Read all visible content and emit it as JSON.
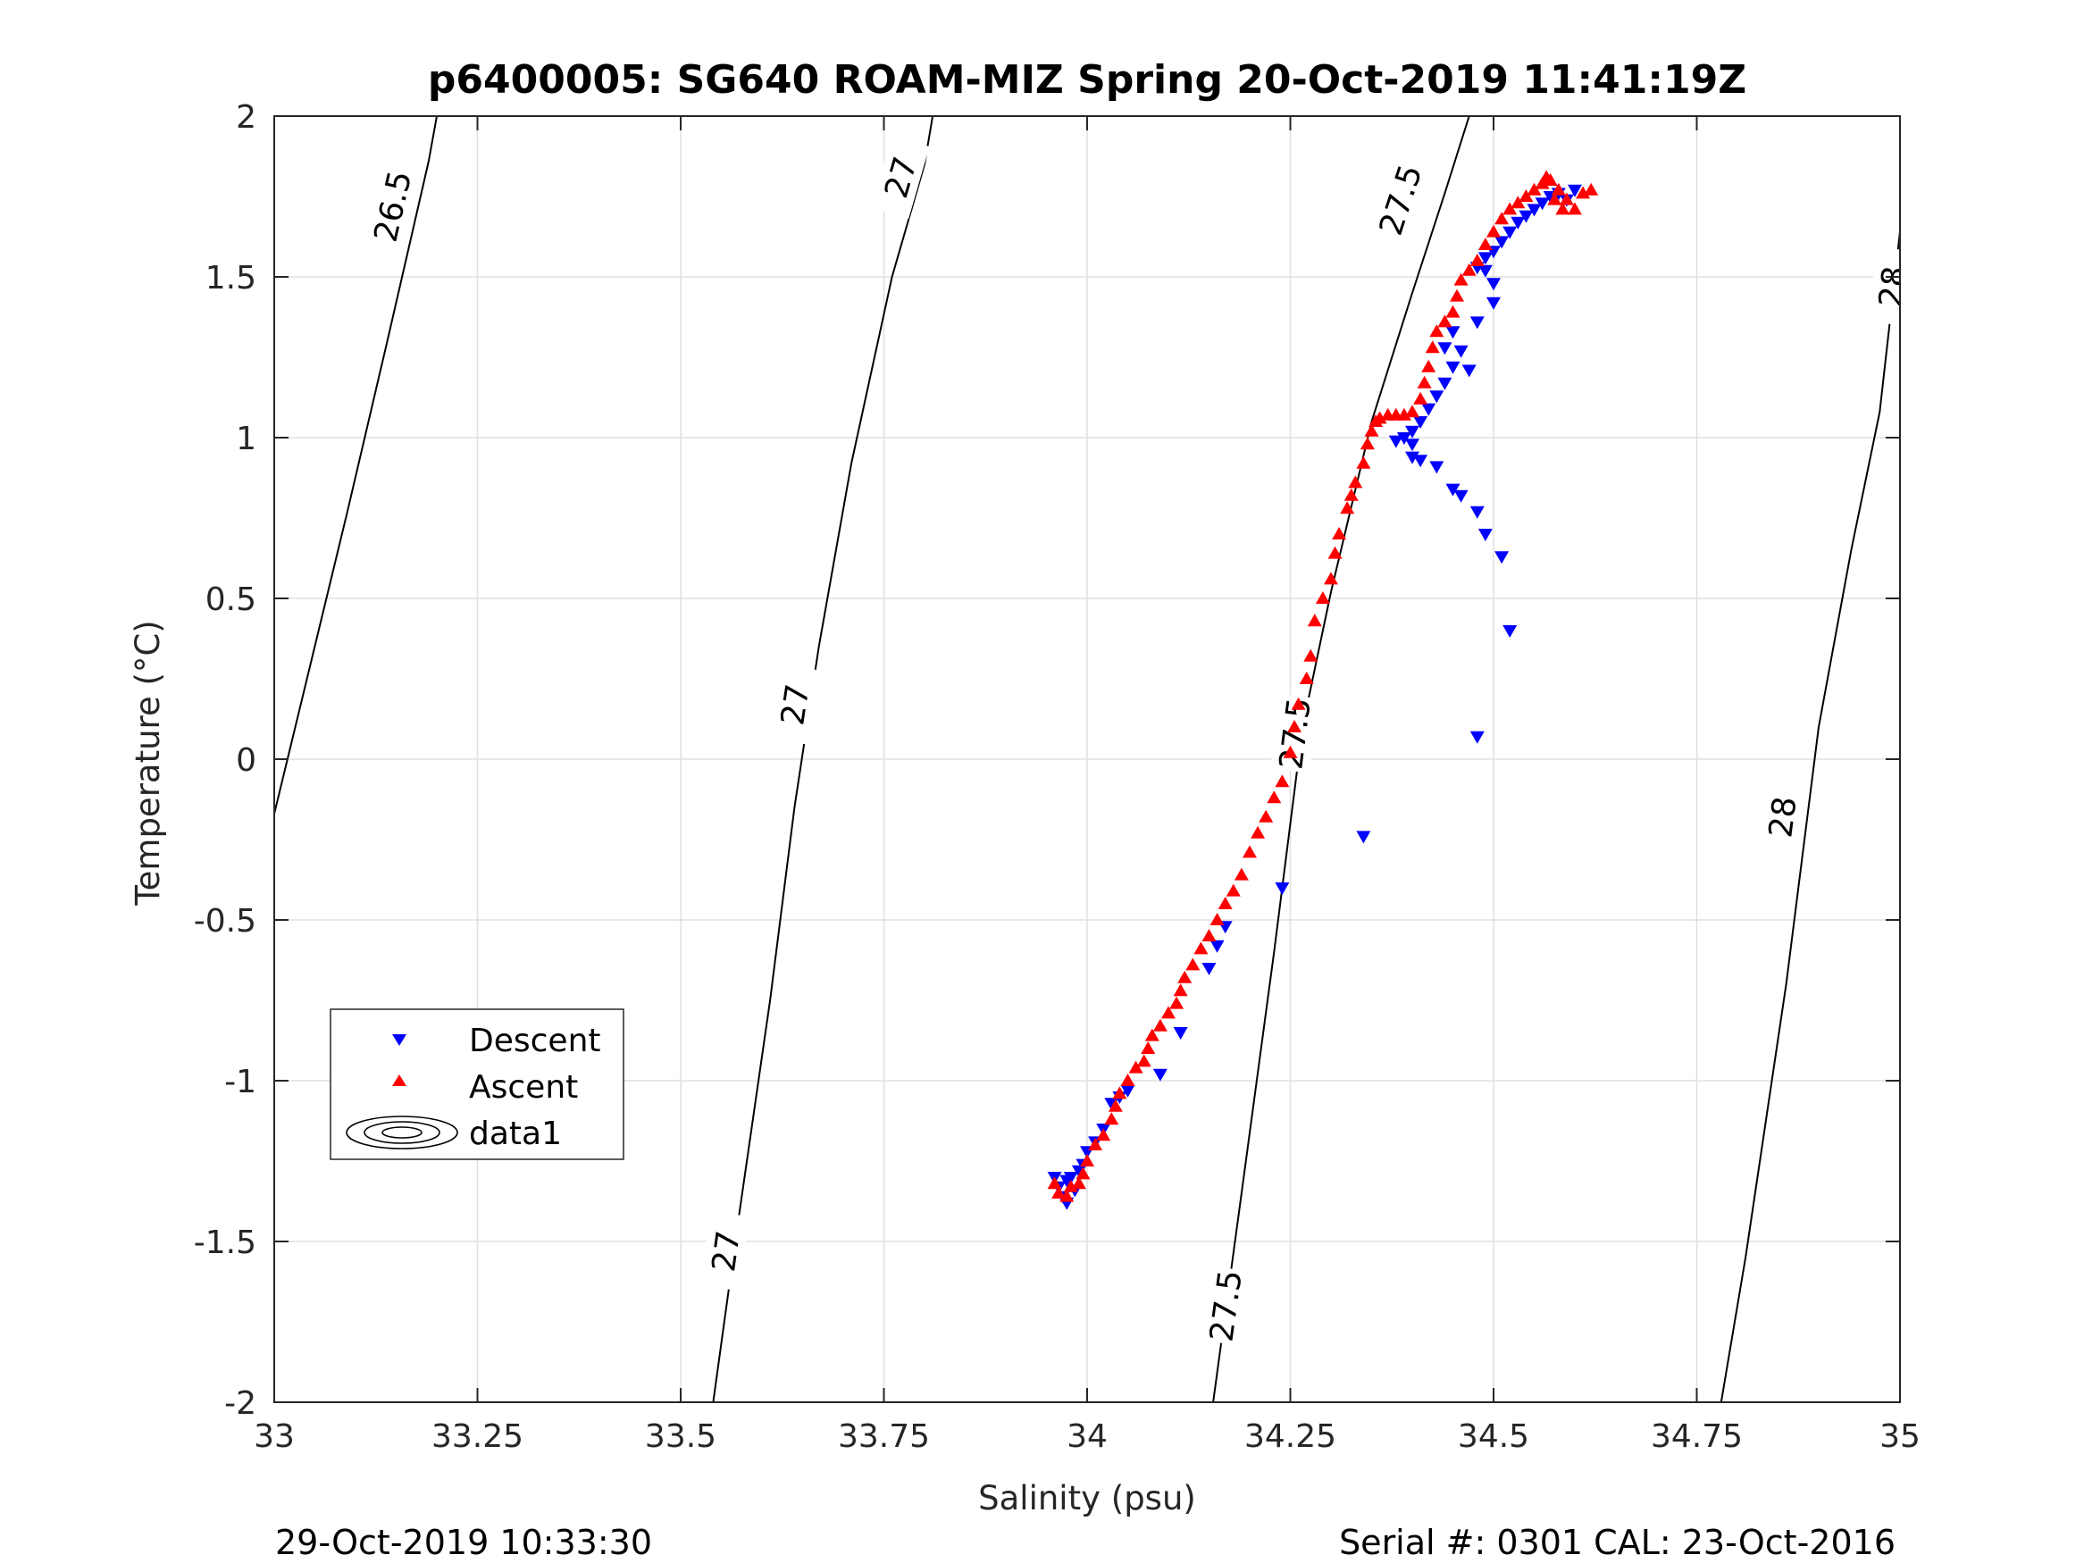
{
  "chart_data": {
    "type": "scatter",
    "title": "p6400005: SG640 ROAM-MIZ Spring 20-Oct-2019 11:41:19Z",
    "xlabel": "Salinity (psu)",
    "ylabel": "Temperature (°C)",
    "xlim": [
      33,
      35
    ],
    "ylim": [
      -2,
      2
    ],
    "xticks": [
      "33",
      "33.25",
      "33.5",
      "33.75",
      "34",
      "34.25",
      "34.5",
      "34.75",
      "35"
    ],
    "yticks": [
      "-2",
      "-1.5",
      "-1",
      "-0.5",
      "0",
      "0.5",
      "1",
      "1.5",
      "2"
    ],
    "grid": true,
    "legend": {
      "location": "lower-left",
      "entries": [
        "Descent",
        "Ascent",
        "data1"
      ]
    },
    "contours": [
      {
        "level": "26.5",
        "points": [
          [
            33.0,
            -0.17
          ],
          [
            33.045,
            0.3
          ],
          [
            33.09,
            0.77
          ],
          [
            33.14,
            1.31
          ],
          [
            33.19,
            1.86
          ],
          [
            33.2,
            2.0
          ]
        ],
        "labels": [
          {
            "x": 33.145,
            "y": 1.72
          }
        ]
      },
      {
        "level": "27",
        "points": [
          [
            33.54,
            -2.0
          ],
          [
            33.57,
            -1.45
          ],
          [
            33.61,
            -0.75
          ],
          [
            33.64,
            -0.15
          ],
          [
            33.67,
            0.35
          ],
          [
            33.71,
            0.92
          ],
          [
            33.76,
            1.5
          ],
          [
            33.8,
            1.85
          ],
          [
            33.81,
            2.0
          ]
        ],
        "labels": [
          {
            "x": 33.555,
            "y": -1.53
          },
          {
            "x": 33.64,
            "y": 0.17
          },
          {
            "x": 33.77,
            "y": 1.81
          }
        ]
      },
      {
        "level": "27.5",
        "points": [
          [
            34.155,
            -2.0
          ],
          [
            34.19,
            -1.35
          ],
          [
            34.23,
            -0.6
          ],
          [
            34.265,
            0.1
          ],
          [
            34.3,
            0.52
          ],
          [
            34.35,
            1.05
          ],
          [
            34.4,
            1.45
          ],
          [
            34.44,
            1.76
          ],
          [
            34.47,
            2.0
          ]
        ],
        "labels": [
          {
            "x": 34.17,
            "y": -1.7
          },
          {
            "x": 34.255,
            "y": 0.08
          },
          {
            "x": 34.385,
            "y": 1.74
          }
        ]
      },
      {
        "level": "28",
        "points": [
          [
            34.78,
            -2.0
          ],
          [
            34.81,
            -1.55
          ],
          [
            34.86,
            -0.7
          ],
          [
            34.9,
            0.1
          ],
          [
            34.94,
            0.65
          ],
          [
            34.975,
            1.08
          ],
          [
            35.0,
            1.64
          ]
        ],
        "labels": [
          {
            "x": 34.855,
            "y": -0.18
          },
          {
            "x": 34.99,
            "y": 1.47
          }
        ]
      }
    ],
    "series": [
      {
        "name": "Descent",
        "color": "#0000ff",
        "marker": "triangle-down",
        "points": [
          [
            33.96,
            -1.3
          ],
          [
            33.965,
            -1.33
          ],
          [
            33.97,
            -1.36
          ],
          [
            33.975,
            -1.31
          ],
          [
            33.975,
            -1.38
          ],
          [
            33.98,
            -1.3
          ],
          [
            33.985,
            -1.34
          ],
          [
            33.99,
            -1.28
          ],
          [
            33.995,
            -1.26
          ],
          [
            34.0,
            -1.22
          ],
          [
            34.01,
            -1.19
          ],
          [
            34.02,
            -1.15
          ],
          [
            34.03,
            -1.07
          ],
          [
            34.04,
            -1.05
          ],
          [
            34.05,
            -1.03
          ],
          [
            34.09,
            -0.98
          ],
          [
            34.115,
            -0.85
          ],
          [
            34.15,
            -0.65
          ],
          [
            34.16,
            -0.58
          ],
          [
            34.17,
            -0.52
          ],
          [
            34.24,
            -0.4
          ],
          [
            34.34,
            -0.24
          ],
          [
            34.48,
            0.07
          ],
          [
            34.52,
            0.4
          ],
          [
            34.51,
            0.63
          ],
          [
            34.49,
            0.7
          ],
          [
            34.48,
            0.77
          ],
          [
            34.46,
            0.82
          ],
          [
            34.45,
            0.84
          ],
          [
            34.43,
            0.91
          ],
          [
            34.41,
            0.93
          ],
          [
            34.4,
            0.94
          ],
          [
            34.4,
            0.98
          ],
          [
            34.39,
            1.0
          ],
          [
            34.38,
            0.99
          ],
          [
            34.4,
            1.02
          ],
          [
            34.41,
            1.05
          ],
          [
            34.42,
            1.09
          ],
          [
            34.43,
            1.13
          ],
          [
            34.44,
            1.17
          ],
          [
            34.45,
            1.22
          ],
          [
            34.46,
            1.27
          ],
          [
            34.47,
            1.21
          ],
          [
            34.44,
            1.28
          ],
          [
            34.45,
            1.33
          ],
          [
            34.48,
            1.36
          ],
          [
            34.5,
            1.42
          ],
          [
            34.5,
            1.48
          ],
          [
            34.49,
            1.52
          ],
          [
            34.48,
            1.53
          ],
          [
            34.49,
            1.56
          ],
          [
            34.5,
            1.58
          ],
          [
            34.51,
            1.61
          ],
          [
            34.52,
            1.64
          ],
          [
            34.53,
            1.67
          ],
          [
            34.54,
            1.69
          ],
          [
            34.55,
            1.71
          ],
          [
            34.56,
            1.73
          ],
          [
            34.57,
            1.75
          ],
          [
            34.58,
            1.76
          ],
          [
            34.59,
            1.74
          ],
          [
            34.6,
            1.77
          ]
        ]
      },
      {
        "name": "Ascent",
        "color": "#ff0000",
        "marker": "triangle-up",
        "points": [
          [
            33.96,
            -1.32
          ],
          [
            33.965,
            -1.35
          ],
          [
            33.975,
            -1.36
          ],
          [
            33.98,
            -1.33
          ],
          [
            33.99,
            -1.32
          ],
          [
            33.995,
            -1.29
          ],
          [
            34.0,
            -1.25
          ],
          [
            34.01,
            -1.2
          ],
          [
            34.02,
            -1.17
          ],
          [
            34.03,
            -1.12
          ],
          [
            34.035,
            -1.08
          ],
          [
            34.04,
            -1.04
          ],
          [
            34.05,
            -1.0
          ],
          [
            34.06,
            -0.96
          ],
          [
            34.07,
            -0.94
          ],
          [
            34.075,
            -0.9
          ],
          [
            34.08,
            -0.86
          ],
          [
            34.09,
            -0.83
          ],
          [
            34.1,
            -0.79
          ],
          [
            34.11,
            -0.76
          ],
          [
            34.115,
            -0.72
          ],
          [
            34.12,
            -0.68
          ],
          [
            34.13,
            -0.64
          ],
          [
            34.14,
            -0.59
          ],
          [
            34.15,
            -0.55
          ],
          [
            34.16,
            -0.5
          ],
          [
            34.17,
            -0.45
          ],
          [
            34.18,
            -0.41
          ],
          [
            34.19,
            -0.36
          ],
          [
            34.2,
            -0.29
          ],
          [
            34.21,
            -0.23
          ],
          [
            34.22,
            -0.18
          ],
          [
            34.23,
            -0.12
          ],
          [
            34.24,
            -0.07
          ],
          [
            34.25,
            0.02
          ],
          [
            34.255,
            0.1
          ],
          [
            34.26,
            0.17
          ],
          [
            34.27,
            0.25
          ],
          [
            34.275,
            0.32
          ],
          [
            34.28,
            0.43
          ],
          [
            34.29,
            0.5
          ],
          [
            34.3,
            0.56
          ],
          [
            34.305,
            0.64
          ],
          [
            34.31,
            0.7
          ],
          [
            34.32,
            0.78
          ],
          [
            34.325,
            0.82
          ],
          [
            34.33,
            0.86
          ],
          [
            34.34,
            0.92
          ],
          [
            34.345,
            0.98
          ],
          [
            34.35,
            1.02
          ],
          [
            34.355,
            1.05
          ],
          [
            34.36,
            1.06
          ],
          [
            34.37,
            1.07
          ],
          [
            34.38,
            1.07
          ],
          [
            34.39,
            1.07
          ],
          [
            34.4,
            1.08
          ],
          [
            34.41,
            1.12
          ],
          [
            34.415,
            1.17
          ],
          [
            34.42,
            1.22
          ],
          [
            34.425,
            1.28
          ],
          [
            34.43,
            1.33
          ],
          [
            34.44,
            1.36
          ],
          [
            34.45,
            1.39
          ],
          [
            34.455,
            1.44
          ],
          [
            34.46,
            1.49
          ],
          [
            34.47,
            1.52
          ],
          [
            34.48,
            1.55
          ],
          [
            34.49,
            1.6
          ],
          [
            34.5,
            1.64
          ],
          [
            34.51,
            1.68
          ],
          [
            34.52,
            1.71
          ],
          [
            34.53,
            1.73
          ],
          [
            34.54,
            1.75
          ],
          [
            34.55,
            1.77
          ],
          [
            34.56,
            1.79
          ],
          [
            34.57,
            1.8
          ],
          [
            34.58,
            1.77
          ],
          [
            34.59,
            1.74
          ],
          [
            34.6,
            1.71
          ],
          [
            34.61,
            1.76
          ],
          [
            34.62,
            1.77
          ],
          [
            34.565,
            1.81
          ],
          [
            34.575,
            1.74
          ],
          [
            34.585,
            1.71
          ]
        ]
      }
    ]
  },
  "footer": {
    "left": "29-Oct-2019 10:33:30",
    "right": "Serial #: 0301  CAL: 23-Oct-2016"
  }
}
